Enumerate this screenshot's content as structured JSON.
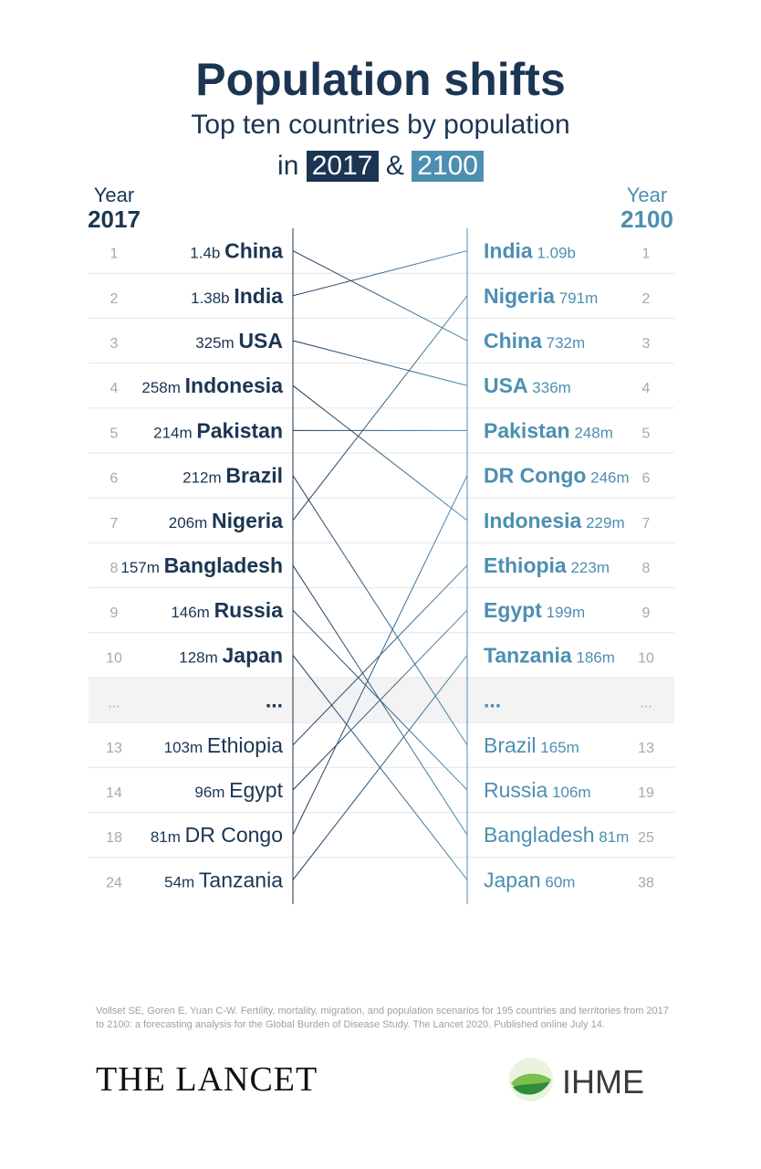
{
  "header": {
    "title": "Population shifts",
    "subtitle": "Top ten countries by population",
    "line_prefix": "in",
    "year_a": "2017",
    "amp": "&",
    "year_b": "2100"
  },
  "columns": {
    "left_label": "Year",
    "left_year": "2017",
    "right_label": "Year",
    "right_year": "2100"
  },
  "colors": {
    "dark": "#1b3553",
    "light": "#4d8fb1",
    "rank_gray": "#a8a8a8",
    "band": "#f3f3f3",
    "divider": "#e6e6e6"
  },
  "chart_data": {
    "type": "slope",
    "left_year": "2017",
    "right_year": "2100",
    "left": [
      {
        "rank": "1",
        "value": "1.4b",
        "country": "China",
        "top10": true
      },
      {
        "rank": "2",
        "value": "1.38b",
        "country": "India",
        "top10": true
      },
      {
        "rank": "3",
        "value": "325m",
        "country": "USA",
        "top10": true
      },
      {
        "rank": "4",
        "value": "258m",
        "country": "Indonesia",
        "top10": true
      },
      {
        "rank": "5",
        "value": "214m",
        "country": "Pakistan",
        "top10": true
      },
      {
        "rank": "6",
        "value": "212m",
        "country": "Brazil",
        "top10": true
      },
      {
        "rank": "7",
        "value": "206m",
        "country": "Nigeria",
        "top10": true
      },
      {
        "rank": "8",
        "value": "157m",
        "country": "Bangladesh",
        "top10": true
      },
      {
        "rank": "9",
        "value": "146m",
        "country": "Russia",
        "top10": true
      },
      {
        "rank": "10",
        "value": "128m",
        "country": "Japan",
        "top10": true
      },
      {
        "rank": "...",
        "value": "",
        "country": "...",
        "top10": true,
        "ellipsis": true
      },
      {
        "rank": "13",
        "value": "103m",
        "country": "Ethiopia",
        "top10": false
      },
      {
        "rank": "14",
        "value": "96m",
        "country": "Egypt",
        "top10": false
      },
      {
        "rank": "18",
        "value": "81m",
        "country": "DR Congo",
        "top10": false
      },
      {
        "rank": "24",
        "value": "54m",
        "country": "Tanzania",
        "top10": false
      }
    ],
    "right": [
      {
        "rank": "1",
        "value": "1.09b",
        "country": "India",
        "top10": true
      },
      {
        "rank": "2",
        "value": "791m",
        "country": "Nigeria",
        "top10": true
      },
      {
        "rank": "3",
        "value": "732m",
        "country": "China",
        "top10": true
      },
      {
        "rank": "4",
        "value": "336m",
        "country": "USA",
        "top10": true
      },
      {
        "rank": "5",
        "value": "248m",
        "country": "Pakistan",
        "top10": true
      },
      {
        "rank": "6",
        "value": "246m",
        "country": "DR Congo",
        "top10": true
      },
      {
        "rank": "7",
        "value": "229m",
        "country": "Indonesia",
        "top10": true
      },
      {
        "rank": "8",
        "value": "223m",
        "country": "Ethiopia",
        "top10": true
      },
      {
        "rank": "9",
        "value": "199m",
        "country": "Egypt",
        "top10": true
      },
      {
        "rank": "10",
        "value": "186m",
        "country": "Tanzania",
        "top10": true
      },
      {
        "rank": "...",
        "value": "",
        "country": "...",
        "top10": true,
        "ellipsis": true
      },
      {
        "rank": "13",
        "value": "165m",
        "country": "Brazil",
        "top10": false
      },
      {
        "rank": "19",
        "value": "106m",
        "country": "Russia",
        "top10": false
      },
      {
        "rank": "25",
        "value": "81m",
        "country": "Bangladesh",
        "top10": false
      },
      {
        "rank": "38",
        "value": "60m",
        "country": "Japan",
        "top10": false
      }
    ]
  },
  "footer": {
    "citation": "Vollset SE, Goren E, Yuan C-W. Fertility, mortality, migration, and population scenarios for 195 countries and territories from 2017 to 2100: a forecasting analysis for the Global Burden of Disease Study. The Lancet 2020. Published online July 14.",
    "lancet": "THE LANCET",
    "ihme": "IHME"
  }
}
